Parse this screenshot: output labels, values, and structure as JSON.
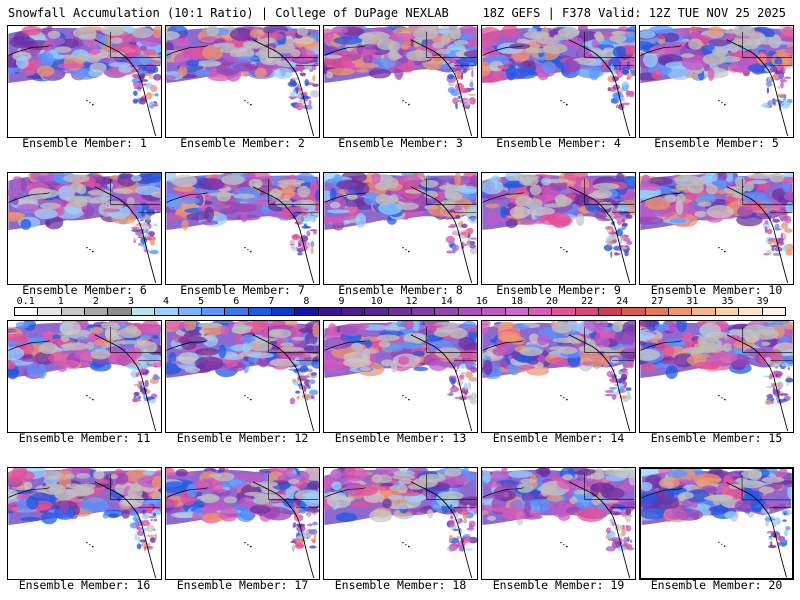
{
  "header": {
    "title": "Snowfall Accumulation (10:1 Ratio) | College of DuPage NEXLAB",
    "run_info": "18Z GEFS | F378 Valid: 12Z TUE NOV 25 2025"
  },
  "panels": [
    {
      "label": "Ensemble Member: 1"
    },
    {
      "label": "Ensemble Member: 2"
    },
    {
      "label": "Ensemble Member: 3"
    },
    {
      "label": "Ensemble Member: 4"
    },
    {
      "label": "Ensemble Member: 5"
    },
    {
      "label": "Ensemble Member: 6"
    },
    {
      "label": "Ensemble Member: 7"
    },
    {
      "label": "Ensemble Member: 8"
    },
    {
      "label": "Ensemble Member: 9"
    },
    {
      "label": "Ensemble Member: 10"
    },
    {
      "label": "Ensemble Member: 11"
    },
    {
      "label": "Ensemble Member: 12"
    },
    {
      "label": "Ensemble Member: 13"
    },
    {
      "label": "Ensemble Member: 14"
    },
    {
      "label": "Ensemble Member: 15"
    },
    {
      "label": "Ensemble Member: 16"
    },
    {
      "label": "Ensemble Member: 17"
    },
    {
      "label": "Ensemble Member: 18"
    },
    {
      "label": "Ensemble Member: 19"
    },
    {
      "label": "Ensemble Member: 20"
    }
  ],
  "colorbar": {
    "ticks": [
      "0.1",
      "1",
      "2",
      "3",
      "4",
      "5",
      "6",
      "7",
      "8",
      "9",
      "10",
      "12",
      "14",
      "16",
      "18",
      "20",
      "22",
      "24",
      "27",
      "31",
      "35",
      "39"
    ],
    "colors": [
      "#ffffff",
      "#e6e6e6",
      "#c8c8c8",
      "#a8a8a8",
      "#8c8c8c",
      "#b4e6f0",
      "#96d2ff",
      "#78b4ff",
      "#5a96ff",
      "#3c78f0",
      "#1e5ae6",
      "#0a3cd2",
      "#1414aa",
      "#3c1496",
      "#501e8c",
      "#5a2896",
      "#6e32a0",
      "#823caa",
      "#9646b4",
      "#aa50be",
      "#be5ac8",
      "#d264d2",
      "#dc5ab4",
      "#e65096",
      "#dc4678",
      "#d23c5a",
      "#dc5a50",
      "#e6785a",
      "#f0966e",
      "#f5b48c",
      "#f8d2a8",
      "#fbe6c8",
      "#fff5e6"
    ],
    "selected_member": 20
  }
}
